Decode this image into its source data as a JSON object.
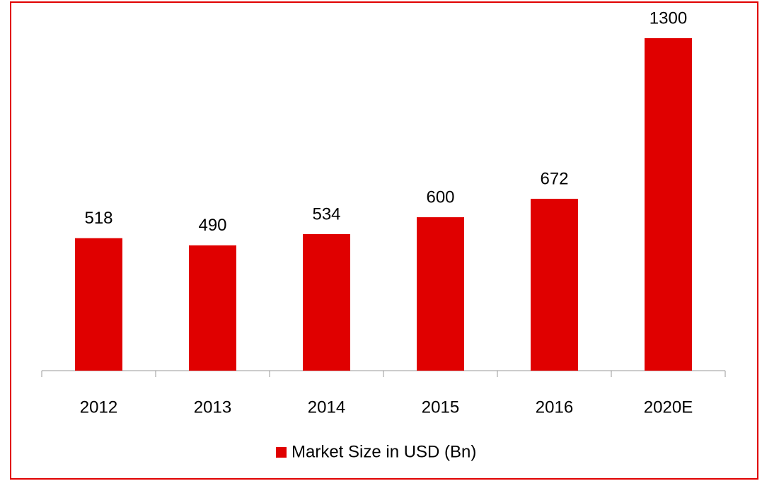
{
  "chart_data": {
    "type": "bar",
    "categories": [
      "2012",
      "2013",
      "2014",
      "2015",
      "2016",
      "2020E"
    ],
    "series": [
      {
        "name": "Market Size in USD (Bn)",
        "color": "#e00000",
        "values": [
          518,
          490,
          534,
          600,
          672,
          1300
        ]
      }
    ],
    "legend": "bottom"
  }
}
